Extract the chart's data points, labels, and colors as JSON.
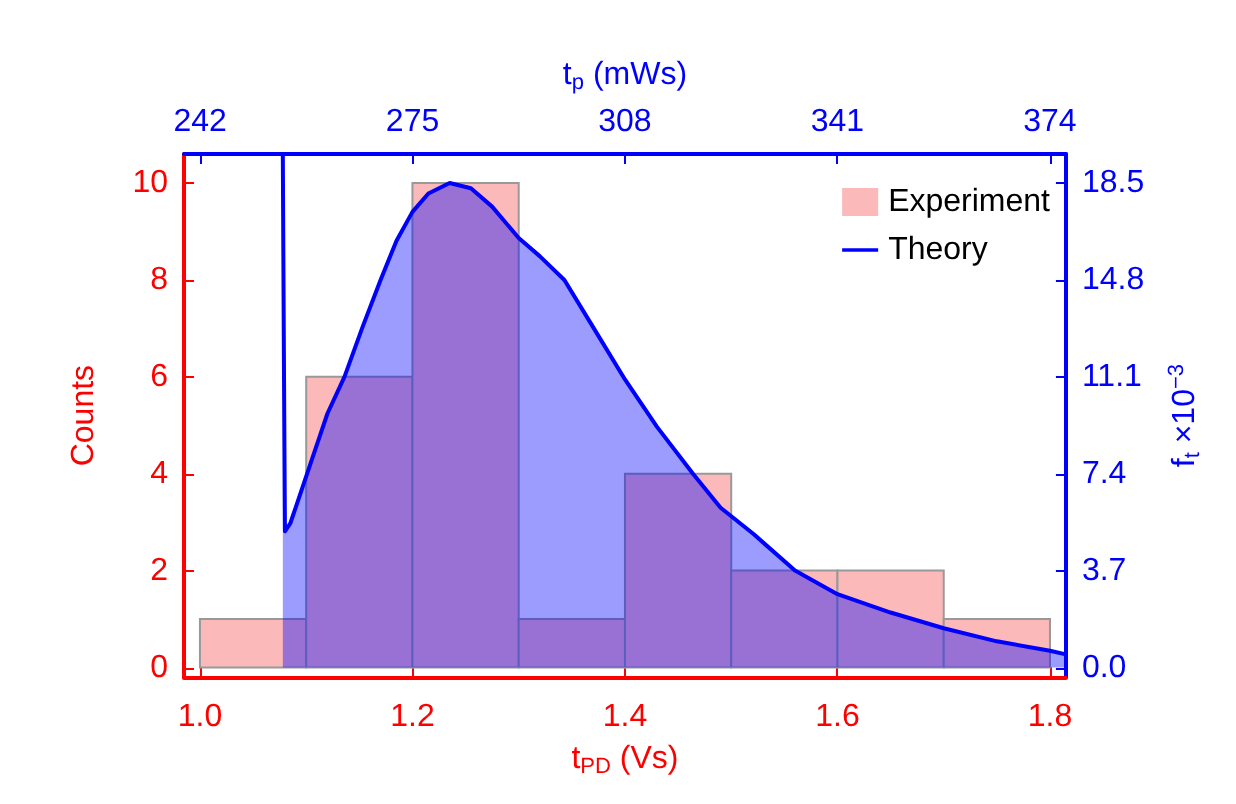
{
  "chart_data": {
    "type": "histogram",
    "xlabel": "t$_{PD}$ (Vs)",
    "ylabel": "Counts",
    "x2label": "t$_{p}$ (mWs)",
    "y2label": "f$_{t}$ ×10$^{−3}$",
    "xlim": [
      0.985,
      1.815
    ],
    "xticks": [
      {
        "value": 1,
        "label": "1.0"
      },
      1.2,
      1.4,
      1.6,
      1.8
    ],
    "x2lim": [
      239.5,
      376.5
    ],
    "x2ticks": [
      242,
      275,
      308,
      341,
      374
    ],
    "ylim": [
      -0.2,
      10.6
    ],
    "yticks": [
      0,
      2,
      4,
      6,
      8,
      10
    ],
    "y2lim": [
      -0.37,
      19.61
    ],
    "y2ticks": [
      {
        "value": 0,
        "label": "0.0"
      },
      3.7,
      7.4,
      11.1,
      14.8,
      18.5
    ],
    "legend": "top right",
    "grid": false,
    "series": [
      {
        "name": "Experiment",
        "color": "#fbb9b9",
        "bins": [
          1.0,
          1.1,
          1.2,
          1.3,
          1.4,
          1.5,
          1.6,
          1.7,
          1.8
        ],
        "values": [
          1,
          6,
          10,
          1,
          4,
          2,
          2,
          1
        ]
      },
      {
        "name": "Theory",
        "type": "area",
        "axis": "y2",
        "color": "#0000ff",
        "x": [
          1.078,
          1.079,
          1.08,
          1.085,
          1.09,
          1.1,
          1.11,
          1.12,
          1.136,
          1.153,
          1.17,
          1.185,
          1.2,
          1.215,
          1.235,
          1.255,
          1.275,
          1.3,
          1.32,
          1.343,
          1.37,
          1.4,
          1.43,
          1.464,
          1.49,
          1.521,
          1.56,
          1.6,
          1.65,
          1.7,
          1.75,
          1.8,
          1.815
        ],
        "values": [
          19.6,
          12,
          5.2,
          5.5,
          6.1,
          7.3,
          8.5,
          9.7,
          11.1,
          13.0,
          14.8,
          16.3,
          17.4,
          18.1,
          18.5,
          18.3,
          17.6,
          16.4,
          15.7,
          14.8,
          13.0,
          11.0,
          9.2,
          7.4,
          6.1,
          5.1,
          3.7,
          2.8,
          2.1,
          1.5,
          1.0,
          0.64,
          0.5
        ]
      }
    ]
  }
}
